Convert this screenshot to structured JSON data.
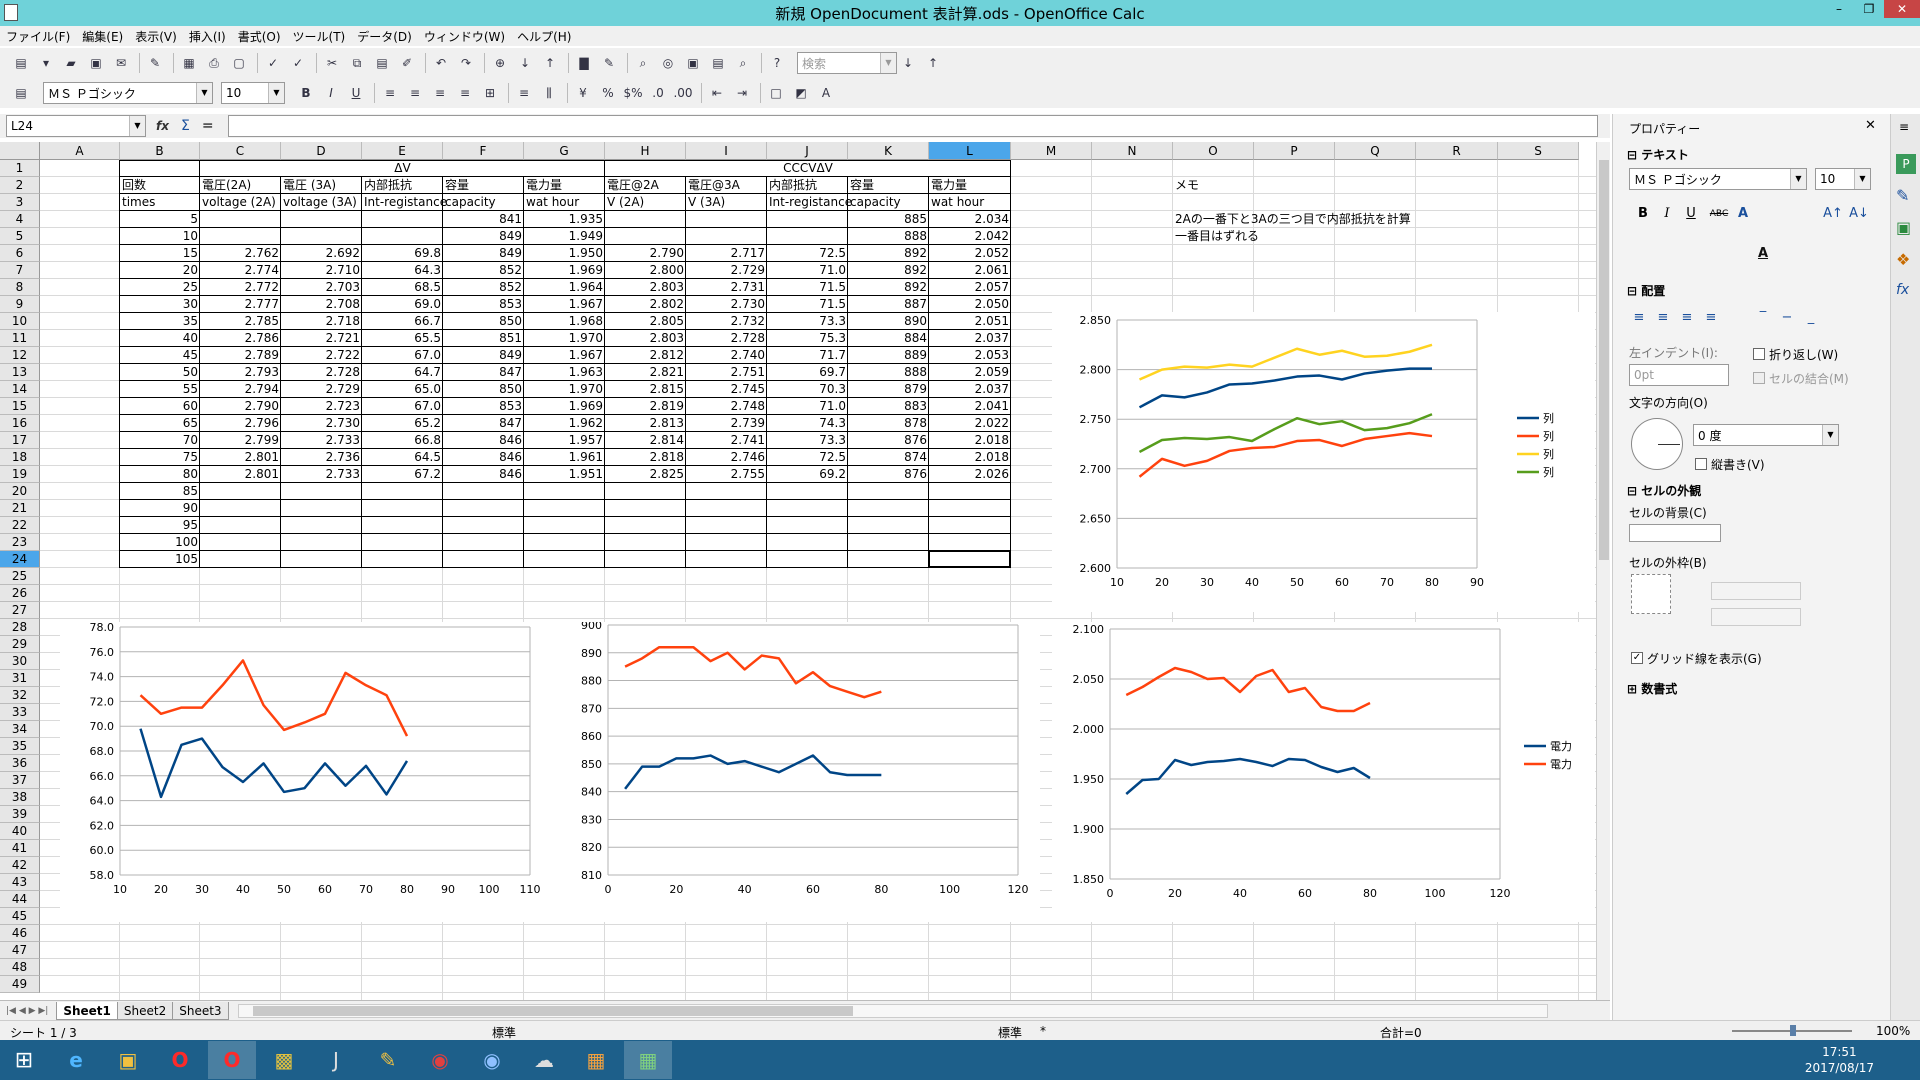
{
  "window": {
    "title": "新規 OpenDocument 表計算.ods - OpenOffice Calc"
  },
  "menu": [
    "ファイル(F)",
    "編集(E)",
    "表示(V)",
    "挿入(I)",
    "書式(O)",
    "ツール(T)",
    "データ(D)",
    "ウィンドウ(W)",
    "ヘルプ(H)"
  ],
  "toolbar": {
    "search_placeholder": "検索",
    "font_name": "ＭＳ Ｐゴシック",
    "font_size": "10"
  },
  "formula": {
    "cell_ref": "L24",
    "content": ""
  },
  "columns": [
    "A",
    "B",
    "C",
    "D",
    "E",
    "F",
    "G",
    "H",
    "I",
    "J",
    "K",
    "L",
    "M",
    "N",
    "O",
    "P",
    "Q",
    "R",
    "S"
  ],
  "selected_column": "L",
  "rows": [
    "1",
    "2",
    "3",
    "4",
    "5",
    "6",
    "7",
    "8",
    "9",
    "10",
    "11",
    "12",
    "13",
    "14",
    "15",
    "16",
    "17",
    "18",
    "19",
    "20",
    "21",
    "22",
    "23",
    "24",
    "25",
    "26",
    "27",
    "28",
    "29",
    "30",
    "31",
    "32",
    "33",
    "34",
    "35",
    "36",
    "37",
    "38",
    "39",
    "40",
    "41",
    "42",
    "43",
    "44",
    "45",
    "46",
    "47",
    "48",
    "49"
  ],
  "selected_row": "24",
  "cells": [
    {
      "c": 4,
      "r": 1,
      "v": "ΔV",
      "a": "c"
    },
    {
      "c": 10,
      "r": 1,
      "v": "CCCVΔV",
      "a": "c"
    },
    {
      "c": 1,
      "r": 2,
      "v": "回数"
    },
    {
      "c": 2,
      "r": 2,
      "v": "電圧(2A)"
    },
    {
      "c": 3,
      "r": 2,
      "v": "電圧 (3A)"
    },
    {
      "c": 4,
      "r": 2,
      "v": "内部抵抗"
    },
    {
      "c": 5,
      "r": 2,
      "v": "容量"
    },
    {
      "c": 6,
      "r": 2,
      "v": "電力量"
    },
    {
      "c": 7,
      "r": 2,
      "v": "電圧@2A"
    },
    {
      "c": 8,
      "r": 2,
      "v": "電圧@3A"
    },
    {
      "c": 9,
      "r": 2,
      "v": "内部抵抗"
    },
    {
      "c": 10,
      "r": 2,
      "v": "容量"
    },
    {
      "c": 11,
      "r": 2,
      "v": "電力量"
    },
    {
      "c": 14,
      "r": 2,
      "v": "メモ"
    },
    {
      "c": 1,
      "r": 3,
      "v": "times"
    },
    {
      "c": 2,
      "r": 3,
      "v": "voltage (2A)"
    },
    {
      "c": 3,
      "r": 3,
      "v": "voltage (3A)"
    },
    {
      "c": 4,
      "r": 3,
      "v": "Int-registance"
    },
    {
      "c": 5,
      "r": 3,
      "v": "capacity"
    },
    {
      "c": 6,
      "r": 3,
      "v": "wat hour"
    },
    {
      "c": 7,
      "r": 3,
      "v": "V (2A)"
    },
    {
      "c": 8,
      "r": 3,
      "v": "V (3A)"
    },
    {
      "c": 9,
      "r": 3,
      "v": "Int-registance"
    },
    {
      "c": 10,
      "r": 3,
      "v": "capacity"
    },
    {
      "c": 11,
      "r": 3,
      "v": "wat hour"
    },
    {
      "c": 14,
      "r": 4,
      "v": "2Aの一番下と3Aの三つ目で内部抵抗を計算"
    },
    {
      "c": 14,
      "r": 5,
      "v": "一番目はずれる"
    }
  ],
  "table_rows": [
    [
      "5",
      "",
      "",
      "",
      "841",
      "1.935",
      "",
      "",
      "",
      "885",
      "2.034"
    ],
    [
      "10",
      "",
      "",
      "",
      "849",
      "1.949",
      "",
      "",
      "",
      "888",
      "2.042"
    ],
    [
      "15",
      "2.762",
      "2.692",
      "69.8",
      "849",
      "1.950",
      "2.790",
      "2.717",
      "72.5",
      "892",
      "2.052"
    ],
    [
      "20",
      "2.774",
      "2.710",
      "64.3",
      "852",
      "1.969",
      "2.800",
      "2.729",
      "71.0",
      "892",
      "2.061"
    ],
    [
      "25",
      "2.772",
      "2.703",
      "68.5",
      "852",
      "1.964",
      "2.803",
      "2.731",
      "71.5",
      "892",
      "2.057"
    ],
    [
      "30",
      "2.777",
      "2.708",
      "69.0",
      "853",
      "1.967",
      "2.802",
      "2.730",
      "71.5",
      "887",
      "2.050"
    ],
    [
      "35",
      "2.785",
      "2.718",
      "66.7",
      "850",
      "1.968",
      "2.805",
      "2.732",
      "73.3",
      "890",
      "2.051"
    ],
    [
      "40",
      "2.786",
      "2.721",
      "65.5",
      "851",
      "1.970",
      "2.803",
      "2.728",
      "75.3",
      "884",
      "2.037"
    ],
    [
      "45",
      "2.789",
      "2.722",
      "67.0",
      "849",
      "1.967",
      "2.812",
      "2.740",
      "71.7",
      "889",
      "2.053"
    ],
    [
      "50",
      "2.793",
      "2.728",
      "64.7",
      "847",
      "1.963",
      "2.821",
      "2.751",
      "69.7",
      "888",
      "2.059"
    ],
    [
      "55",
      "2.794",
      "2.729",
      "65.0",
      "850",
      "1.970",
      "2.815",
      "2.745",
      "70.3",
      "879",
      "2.037"
    ],
    [
      "60",
      "2.790",
      "2.723",
      "67.0",
      "853",
      "1.969",
      "2.819",
      "2.748",
      "71.0",
      "883",
      "2.041"
    ],
    [
      "65",
      "2.796",
      "2.730",
      "65.2",
      "847",
      "1.962",
      "2.813",
      "2.739",
      "74.3",
      "878",
      "2.022"
    ],
    [
      "70",
      "2.799",
      "2.733",
      "66.8",
      "846",
      "1.957",
      "2.814",
      "2.741",
      "73.3",
      "876",
      "2.018"
    ],
    [
      "75",
      "2.801",
      "2.736",
      "64.5",
      "846",
      "1.961",
      "2.818",
      "2.746",
      "72.5",
      "874",
      "2.018"
    ],
    [
      "80",
      "2.801",
      "2.733",
      "67.2",
      "846",
      "1.951",
      "2.825",
      "2.755",
      "69.2",
      "876",
      "2.026"
    ],
    [
      "85",
      "",
      "",
      "",
      "",
      "",
      "",
      "",
      "",
      "",
      ""
    ],
    [
      "90",
      "",
      "",
      "",
      "",
      "",
      "",
      "",
      "",
      "",
      ""
    ],
    [
      "95",
      "",
      "",
      "",
      "",
      "",
      "",
      "",
      "",
      "",
      ""
    ],
    [
      "100",
      "",
      "",
      "",
      "",
      "",
      "",
      "",
      "",
      "",
      ""
    ],
    [
      "105",
      "",
      "",
      "",
      "",
      "",
      "",
      "",
      "",
      "",
      ""
    ]
  ],
  "chart_data": [
    {
      "type": "line",
      "title": "",
      "xlim": [
        10,
        90
      ],
      "ylim": [
        2.6,
        2.85
      ],
      "xticks": [
        "10",
        "20",
        "30",
        "40",
        "50",
        "60",
        "70",
        "80",
        "90"
      ],
      "yticks": [
        "2.600",
        "2.650",
        "2.700",
        "2.750",
        "2.800",
        "2.850"
      ],
      "x": [
        15,
        20,
        25,
        30,
        35,
        40,
        45,
        50,
        55,
        60,
        65,
        70,
        75,
        80
      ],
      "series": [
        {
          "name": "列",
          "color": "#004586",
          "values": [
            2.762,
            2.774,
            2.772,
            2.777,
            2.785,
            2.786,
            2.789,
            2.793,
            2.794,
            2.79,
            2.796,
            2.799,
            2.801,
            2.801
          ]
        },
        {
          "name": "列",
          "color": "#ff420e",
          "values": [
            2.692,
            2.71,
            2.703,
            2.708,
            2.718,
            2.721,
            2.722,
            2.728,
            2.729,
            2.723,
            2.73,
            2.733,
            2.736,
            2.733
          ]
        },
        {
          "name": "列",
          "color": "#ffd320",
          "values": [
            2.79,
            2.8,
            2.803,
            2.802,
            2.805,
            2.803,
            2.812,
            2.821,
            2.815,
            2.819,
            2.813,
            2.814,
            2.818,
            2.825
          ]
        },
        {
          "name": "列",
          "color": "#579d1c",
          "values": [
            2.717,
            2.729,
            2.731,
            2.73,
            2.732,
            2.728,
            2.74,
            2.751,
            2.745,
            2.748,
            2.739,
            2.741,
            2.746,
            2.755
          ]
        }
      ]
    },
    {
      "type": "line",
      "title": "",
      "xlim": [
        10,
        110
      ],
      "ylim": [
        58,
        78
      ],
      "xticks": [
        "10",
        "20",
        "30",
        "40",
        "50",
        "60",
        "70",
        "80",
        "90",
        "100",
        "110"
      ],
      "yticks": [
        "58.0",
        "60.0",
        "62.0",
        "64.0",
        "66.0",
        "68.0",
        "70.0",
        "72.0",
        "74.0",
        "76.0",
        "78.0"
      ],
      "x": [
        15,
        20,
        25,
        30,
        35,
        40,
        45,
        50,
        55,
        60,
        65,
        70,
        75,
        80
      ],
      "series": [
        {
          "name": "",
          "color": "#004586",
          "values": [
            69.8,
            64.3,
            68.5,
            69.0,
            66.7,
            65.5,
            67.0,
            64.7,
            65.0,
            67.0,
            65.2,
            66.8,
            64.5,
            67.2
          ]
        },
        {
          "name": "",
          "color": "#ff420e",
          "values": [
            72.5,
            71.0,
            71.5,
            71.5,
            73.3,
            75.3,
            71.7,
            69.7,
            70.3,
            71.0,
            74.3,
            73.3,
            72.5,
            69.2
          ]
        }
      ]
    },
    {
      "type": "line",
      "title": "",
      "xlim": [
        0,
        120
      ],
      "ylim": [
        810,
        900
      ],
      "xticks": [
        "0",
        "20",
        "40",
        "60",
        "80",
        "100",
        "120"
      ],
      "yticks": [
        "810",
        "820",
        "830",
        "840",
        "850",
        "860",
        "870",
        "880",
        "890",
        "900"
      ],
      "x": [
        5,
        10,
        15,
        20,
        25,
        30,
        35,
        40,
        45,
        50,
        55,
        60,
        65,
        70,
        75,
        80
      ],
      "series": [
        {
          "name": "",
          "color": "#004586",
          "values": [
            841,
            849,
            849,
            852,
            852,
            853,
            850,
            851,
            849,
            847,
            850,
            853,
            847,
            846,
            846,
            846
          ]
        },
        {
          "name": "",
          "color": "#ff420e",
          "values": [
            885,
            888,
            892,
            892,
            892,
            887,
            890,
            884,
            889,
            888,
            879,
            883,
            878,
            876,
            874,
            876
          ]
        }
      ]
    },
    {
      "type": "line",
      "title": "",
      "xlim": [
        0,
        120
      ],
      "ylim": [
        1.85,
        2.1
      ],
      "xticks": [
        "0",
        "20",
        "40",
        "60",
        "80",
        "100",
        "120"
      ],
      "yticks": [
        "1.850",
        "1.900",
        "1.950",
        "2.000",
        "2.050",
        "2.100"
      ],
      "x": [
        5,
        10,
        15,
        20,
        25,
        30,
        35,
        40,
        45,
        50,
        55,
        60,
        65,
        70,
        75,
        80
      ],
      "series": [
        {
          "name": "電力",
          "color": "#004586",
          "values": [
            1.935,
            1.949,
            1.95,
            1.969,
            1.964,
            1.967,
            1.968,
            1.97,
            1.967,
            1.963,
            1.97,
            1.969,
            1.962,
            1.957,
            1.961,
            1.951
          ]
        },
        {
          "name": "電力",
          "color": "#ff420e",
          "values": [
            2.034,
            2.042,
            2.052,
            2.061,
            2.057,
            2.05,
            2.051,
            2.037,
            2.053,
            2.059,
            2.037,
            2.041,
            2.022,
            2.018,
            2.018,
            2.026
          ]
        }
      ]
    }
  ],
  "tabs": [
    "Sheet1",
    "Sheet2",
    "Sheet3"
  ],
  "status": {
    "sheet": "シート 1 / 3",
    "style": "標準",
    "mode": "標準",
    "modified": "*",
    "sum": "合計=0",
    "zoom": "100%"
  },
  "sidebar": {
    "title": "プロパティー",
    "text_section": "テキスト",
    "font_name": "ＭＳ Ｐゴシック",
    "font_size": "10",
    "align_section": "配置",
    "indent_label": "左インデント(I):",
    "indent_value": "0pt",
    "wrap_label": "折り返し(W)",
    "merge_label": "セルの結合(M)",
    "direction_label": "文字の方向(O)",
    "angle_value": "0 度",
    "vertical_label": "縦書き(V)",
    "appearance_section": "セルの外観",
    "bg_label": "セルの背景(C)",
    "border_label": "セルの外枠(B)",
    "grid_label": "グリッド線を表示(G)",
    "number_section": "数書式"
  },
  "clock": {
    "time": "17:51",
    "date": "2017/08/17"
  }
}
